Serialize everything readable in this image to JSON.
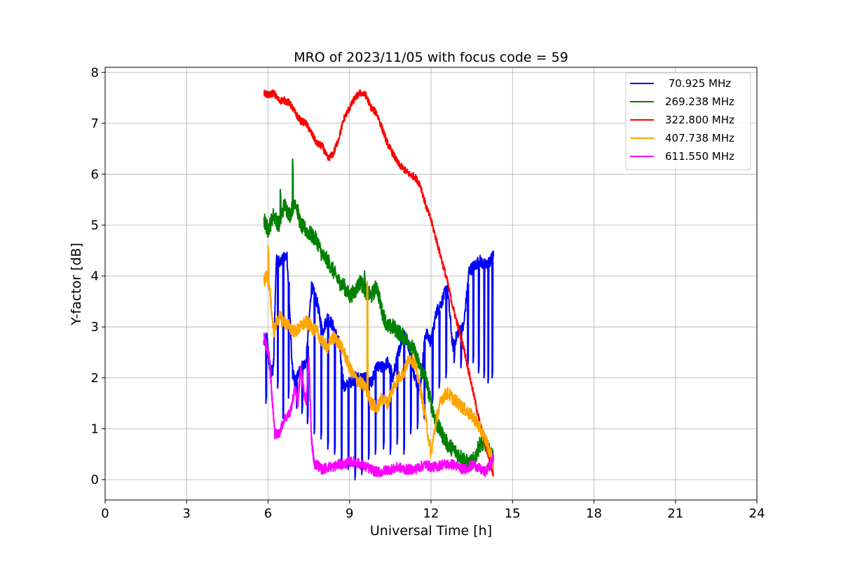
{
  "chart_data": {
    "type": "line",
    "title": "MRO of 2023/11/05 with focus code = 59",
    "xlabel": "Universal Time [h]",
    "ylabel": "Y-factor [dB]",
    "xlim": [
      0,
      24
    ],
    "ylim": [
      -0.4,
      8.1
    ],
    "xticks": [
      0,
      3,
      6,
      9,
      12,
      15,
      18,
      21,
      24
    ],
    "yticks": [
      0,
      1,
      2,
      3,
      4,
      5,
      6,
      7,
      8
    ],
    "grid": true,
    "legend_position": "top-right",
    "series": [
      {
        "name": " 70.925 MHz",
        "color": "#0000ff",
        "noise": 0.12,
        "x": [
          5.85,
          5.95,
          6.0,
          6.05,
          6.1,
          6.2,
          6.3,
          6.5,
          6.7,
          6.9,
          7.0,
          7.2,
          7.4,
          7.6,
          7.8,
          8.0,
          8.2,
          8.4,
          8.6,
          8.8,
          9.0,
          9.2,
          9.4,
          9.6,
          9.8,
          10.0,
          10.2,
          10.4,
          10.6,
          10.8,
          11.0,
          11.2,
          11.4,
          11.6,
          11.8,
          12.0,
          12.2,
          12.4,
          12.6,
          12.8,
          13.0,
          13.2,
          13.4,
          13.6,
          13.8,
          14.0,
          14.2,
          14.3
        ],
        "y": [
          2.7,
          2.8,
          2.5,
          2.3,
          2.1,
          2.2,
          4.3,
          4.3,
          4.4,
          2.1,
          1.9,
          2.2,
          2.3,
          3.8,
          3.5,
          2.9,
          3.2,
          3.0,
          2.7,
          1.8,
          1.9,
          2.0,
          2.0,
          2.0,
          1.9,
          2.2,
          2.2,
          2.3,
          2.0,
          2.5,
          2.9,
          2.6,
          2.0,
          1.8,
          2.9,
          2.7,
          3.3,
          3.5,
          3.8,
          2.6,
          2.9,
          3.0,
          4.1,
          4.2,
          4.3,
          4.2,
          4.3,
          4.4
        ],
        "dips": [
          {
            "x": 5.92,
            "y": 1.5
          },
          {
            "x": 6.08,
            "y": 2.0
          },
          {
            "x": 6.35,
            "y": 1.8
          },
          {
            "x": 6.55,
            "y": 1.2
          },
          {
            "x": 6.75,
            "y": 1.6
          },
          {
            "x": 7.05,
            "y": 1.4
          },
          {
            "x": 7.25,
            "y": 1.3
          },
          {
            "x": 7.45,
            "y": 1.1
          },
          {
            "x": 7.7,
            "y": 0.9
          },
          {
            "x": 7.95,
            "y": 0.8
          },
          {
            "x": 8.2,
            "y": 0.6
          },
          {
            "x": 8.45,
            "y": 0.5
          },
          {
            "x": 8.7,
            "y": 0.3
          },
          {
            "x": 8.95,
            "y": 0.2
          },
          {
            "x": 9.2,
            "y": 0.0
          },
          {
            "x": 9.45,
            "y": 0.1
          },
          {
            "x": 9.7,
            "y": 0.4
          },
          {
            "x": 9.95,
            "y": 0.5
          },
          {
            "x": 10.25,
            "y": 0.6
          },
          {
            "x": 10.5,
            "y": 0.5
          },
          {
            "x": 10.75,
            "y": 0.7
          },
          {
            "x": 11.0,
            "y": 0.5
          },
          {
            "x": 11.25,
            "y": 0.9
          },
          {
            "x": 11.5,
            "y": 1.0
          },
          {
            "x": 11.75,
            "y": 1.2
          },
          {
            "x": 12.05,
            "y": 1.5
          },
          {
            "x": 12.3,
            "y": 1.8
          },
          {
            "x": 12.55,
            "y": 2.0
          },
          {
            "x": 12.85,
            "y": 2.3
          },
          {
            "x": 13.1,
            "y": 2.2
          },
          {
            "x": 13.35,
            "y": 2.2
          },
          {
            "x": 13.55,
            "y": 2.3
          },
          {
            "x": 13.75,
            "y": 2.1
          },
          {
            "x": 13.95,
            "y": 2.0
          },
          {
            "x": 14.1,
            "y": 1.9
          },
          {
            "x": 14.25,
            "y": 2.0
          }
        ]
      },
      {
        "name": "269.238 MHz",
        "color": "#008000",
        "noise": 0.16,
        "x": [
          5.85,
          6.0,
          6.2,
          6.4,
          6.6,
          6.8,
          7.0,
          7.2,
          7.4,
          7.6,
          7.8,
          8.0,
          8.2,
          8.4,
          8.6,
          8.8,
          9.0,
          9.2,
          9.4,
          9.6,
          9.8,
          10.0,
          10.2,
          10.4,
          10.6,
          10.8,
          11.0,
          11.2,
          11.4,
          11.6,
          11.8,
          12.0,
          12.2,
          12.4,
          12.6,
          12.8,
          13.0,
          13.2,
          13.4,
          13.6,
          13.8,
          14.0,
          14.2,
          14.3
        ],
        "y": [
          5.1,
          4.9,
          5.2,
          5.0,
          5.4,
          5.2,
          5.5,
          5.0,
          4.9,
          4.8,
          4.7,
          4.4,
          4.3,
          4.1,
          3.9,
          3.8,
          3.6,
          3.7,
          3.9,
          3.7,
          3.6,
          3.8,
          3.3,
          3.0,
          3.0,
          2.9,
          2.8,
          2.7,
          2.5,
          2.2,
          2.0,
          1.5,
          1.1,
          0.9,
          0.7,
          0.6,
          0.5,
          0.4,
          0.3,
          0.4,
          0.7,
          0.7,
          0.5,
          0.4
        ],
        "spikes": [
          {
            "x": 6.9,
            "y": 6.3
          },
          {
            "x": 6.45,
            "y": 5.7
          },
          {
            "x": 9.55,
            "y": 4.1
          }
        ]
      },
      {
        "name": "322.800 MHz",
        "color": "#ff0000",
        "noise": 0.07,
        "x": [
          5.85,
          6.0,
          6.2,
          6.4,
          6.6,
          6.8,
          7.0,
          7.2,
          7.4,
          7.6,
          7.8,
          8.0,
          8.2,
          8.4,
          8.6,
          8.8,
          9.0,
          9.2,
          9.4,
          9.6,
          9.8,
          10.0,
          10.2,
          10.4,
          10.6,
          10.8,
          11.0,
          11.2,
          11.4,
          11.6,
          11.8,
          12.0,
          12.2,
          12.4,
          12.6,
          12.8,
          13.0,
          13.2,
          13.4,
          13.6,
          13.8,
          14.0,
          14.2,
          14.3
        ],
        "y": [
          7.6,
          7.55,
          7.6,
          7.45,
          7.45,
          7.4,
          7.2,
          7.05,
          7.0,
          6.8,
          6.6,
          6.55,
          6.3,
          6.4,
          6.7,
          7.1,
          7.3,
          7.5,
          7.6,
          7.55,
          7.3,
          7.2,
          6.9,
          6.6,
          6.4,
          6.2,
          6.1,
          6.0,
          5.95,
          5.8,
          5.4,
          5.1,
          4.7,
          4.3,
          3.9,
          3.4,
          3.0,
          2.6,
          2.1,
          1.6,
          1.1,
          0.7,
          0.3,
          0.1
        ]
      },
      {
        "name": "407.738 MHz",
        "color": "#ffa500",
        "noise": 0.13,
        "x": [
          5.85,
          5.95,
          6.05,
          6.2,
          6.4,
          6.6,
          6.8,
          7.0,
          7.2,
          7.4,
          7.6,
          7.8,
          8.0,
          8.2,
          8.4,
          8.6,
          8.8,
          9.0,
          9.2,
          9.4,
          9.6,
          9.8,
          10.0,
          10.2,
          10.4,
          10.6,
          10.8,
          11.0,
          11.2,
          11.4,
          11.6,
          11.8,
          12.0,
          12.2,
          12.4,
          12.6,
          12.8,
          13.0,
          13.2,
          13.4,
          13.6,
          13.8,
          14.0,
          14.2,
          14.3
        ],
        "y": [
          3.9,
          4.0,
          3.8,
          2.9,
          3.2,
          3.1,
          3.0,
          2.9,
          3.0,
          3.1,
          3.0,
          2.9,
          2.7,
          2.6,
          2.8,
          2.7,
          2.5,
          2.2,
          2.0,
          1.9,
          1.8,
          1.5,
          1.4,
          1.6,
          1.5,
          1.8,
          2.0,
          2.1,
          2.4,
          2.3,
          1.8,
          1.2,
          0.5,
          1.2,
          1.6,
          1.7,
          1.6,
          1.5,
          1.4,
          1.3,
          1.2,
          1.0,
          0.8,
          0.5,
          0.3
        ],
        "spikes": [
          {
            "x": 6.0,
            "y": 4.6
          },
          {
            "x": 9.65,
            "y": 3.9
          }
        ]
      },
      {
        "name": "611.550 MHz",
        "color": "#ff00ff",
        "noise": 0.1,
        "x": [
          5.85,
          5.95,
          6.05,
          6.15,
          6.25,
          6.4,
          6.6,
          6.8,
          7.0,
          7.1,
          7.2,
          7.3,
          7.4,
          7.5,
          7.6,
          7.7,
          7.8,
          8.0,
          8.2,
          8.4,
          8.6,
          8.8,
          9.0,
          9.2,
          9.4,
          9.6,
          9.8,
          10.0,
          10.2,
          10.4,
          10.6,
          10.8,
          11.0,
          11.2,
          11.4,
          11.6,
          11.8,
          12.0,
          12.2,
          12.4,
          12.6,
          12.8,
          13.0,
          13.2,
          13.4,
          13.6,
          13.8,
          14.0,
          14.2,
          14.3
        ],
        "y": [
          2.8,
          2.6,
          2.4,
          1.6,
          0.9,
          0.9,
          1.2,
          1.3,
          1.8,
          1.5,
          2.2,
          1.8,
          1.5,
          2.4,
          0.8,
          0.3,
          0.3,
          0.2,
          0.25,
          0.25,
          0.3,
          0.3,
          0.35,
          0.35,
          0.3,
          0.25,
          0.2,
          0.15,
          0.15,
          0.2,
          0.2,
          0.25,
          0.2,
          0.2,
          0.2,
          0.25,
          0.3,
          0.25,
          0.25,
          0.3,
          0.3,
          0.3,
          0.25,
          0.2,
          0.25,
          0.3,
          0.2,
          0.15,
          0.3,
          0.45
        ]
      }
    ]
  }
}
